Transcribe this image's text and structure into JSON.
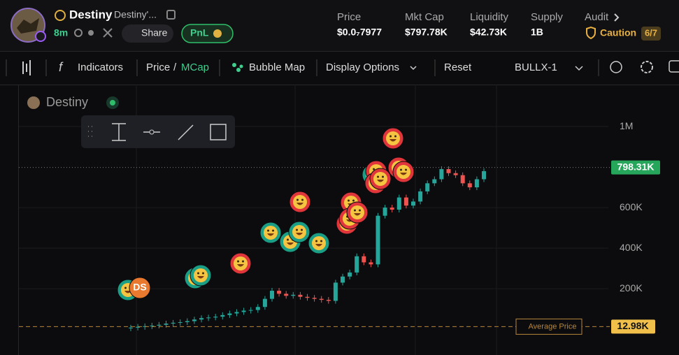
{
  "header": {
    "token_name": "Destiny",
    "token_fullname": "Destiny'...",
    "age": "8m",
    "share": "Share",
    "pnl": "PnL",
    "stats": [
      {
        "label": "Price",
        "value": "$0.0₇7977"
      },
      {
        "label": "Mkt Cap",
        "value": "$797.78K"
      },
      {
        "label": "Liquidity",
        "value": "$42.73K"
      },
      {
        "label": "Supply",
        "value": "1B"
      }
    ],
    "audit": {
      "label": "Audit",
      "status": "Caution",
      "score": "6/7"
    }
  },
  "toolbar": {
    "indicators": "Indicators",
    "price": "Price",
    "separator": "/",
    "mcap": "MCap",
    "bubble_map": "Bubble Map",
    "display_options": "Display Options",
    "reset": "Reset",
    "layout": "BULLX-1"
  },
  "chart_data": {
    "type": "candlestick",
    "title": "Destiny",
    "bubble_label": "DS",
    "values": [
      8000,
      12000,
      15000,
      18000,
      22000,
      28000,
      32000,
      35000,
      40000,
      48000,
      55000,
      58000,
      62000,
      70000,
      78000,
      85000,
      92000,
      95000,
      110000,
      150000,
      190000,
      175000,
      165000,
      170000,
      160000,
      155000,
      150000,
      145000,
      140000,
      230000,
      260000,
      280000,
      360000,
      330000,
      320000,
      560000,
      600000,
      590000,
      650000,
      610000,
      630000,
      680000,
      720000,
      740000,
      790000,
      770000,
      760000,
      720000,
      700000,
      740000,
      780000
    ],
    "up_color": "#26a69a",
    "down_color": "#ef5350",
    "ylim": [
      -127000,
      1207000
    ],
    "yticks": [
      {
        "value": 200000,
        "label": "200K"
      },
      {
        "value": 400000,
        "label": "400K"
      },
      {
        "value": 600000,
        "label": "600K"
      },
      {
        "value": 1000000,
        "label": "1M"
      }
    ],
    "last_price": {
      "value": 798310,
      "label": "798.31K"
    },
    "average_price": {
      "name": "Average Price",
      "value": 12980,
      "label": "12.98K"
    }
  }
}
